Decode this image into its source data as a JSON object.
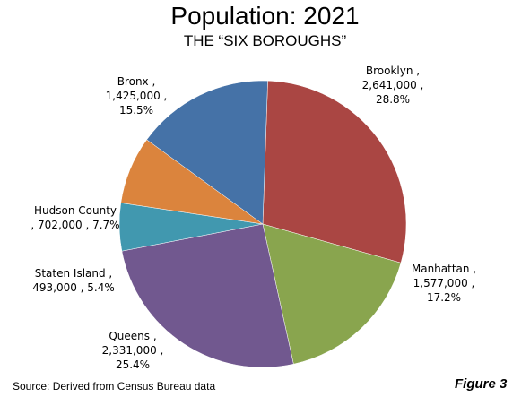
{
  "chart_data": {
    "type": "pie",
    "title": "Population: 2021",
    "subtitle": "THE “SIX BOROUGHS”",
    "slices": [
      {
        "name": "Brooklyn",
        "value": 2641000,
        "value_label": "2,641,000",
        "percent_label": "28.8%",
        "color": "#aa4643"
      },
      {
        "name": "Manhattan",
        "value": 1577000,
        "value_label": "1,577,000",
        "percent_label": "17.2%",
        "color": "#89a54e"
      },
      {
        "name": "Queens",
        "value": 2331000,
        "value_label": "2,331,000",
        "percent_label": "25.4%",
        "color": "#71588f"
      },
      {
        "name": "Staten Island",
        "value": 493000,
        "value_label": "493,000",
        "percent_label": "5.4%",
        "color": "#4198af"
      },
      {
        "name": "Hudson County",
        "value": 702000,
        "value_label": "702,000",
        "percent_label": "7.7%",
        "color": "#db843d"
      },
      {
        "name": "Bronx",
        "value": 1425000,
        "value_label": "1,425,000",
        "percent_label": "15.5%",
        "color": "#4572a7"
      }
    ],
    "slice_label_lines": [
      [
        "Brooklyn ,",
        "2,641,000 ,",
        "28.8%"
      ],
      [
        "Manhattan ,",
        "1,577,000 ,",
        "17.2%"
      ],
      [
        "Queens ,",
        "2,331,000 ,",
        "25.4%"
      ],
      [
        "Staten Island ,",
        "493,000 , 5.4%"
      ],
      [
        "Hudson County",
        ", 702,000 , 7.7%"
      ],
      [
        "Bronx ,",
        "1,425,000 ,",
        "15.5%"
      ]
    ]
  },
  "footer": {
    "source": "Source: Derived from Census Bureau data",
    "figure_label": "Figure 3"
  }
}
